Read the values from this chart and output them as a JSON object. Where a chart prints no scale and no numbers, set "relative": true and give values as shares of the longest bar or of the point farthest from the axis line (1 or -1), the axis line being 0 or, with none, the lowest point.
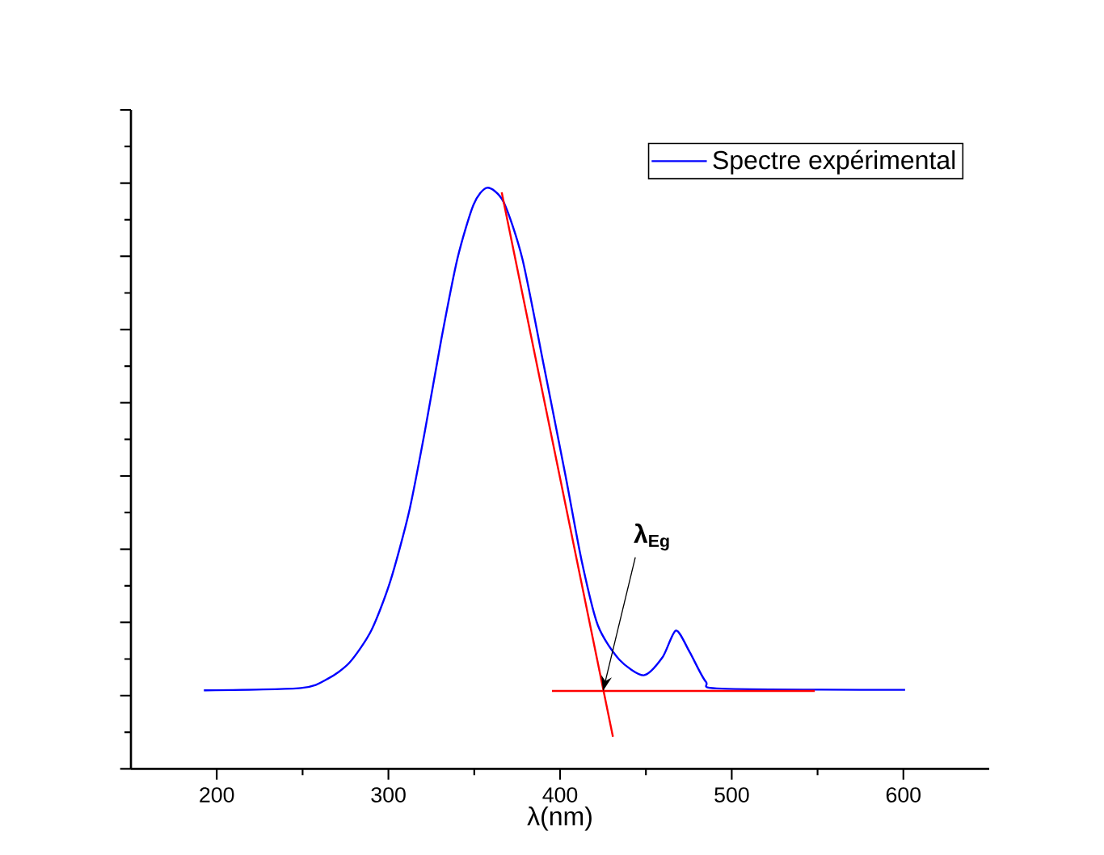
{
  "chart_data": {
    "type": "line",
    "relative": true,
    "xlabel": "λ(nm)",
    "xlim": [
      150,
      650
    ],
    "xticks": [
      200,
      300,
      400,
      500,
      600
    ],
    "tick_labels": "x",
    "legend": "top right",
    "grid": false,
    "marker": "none",
    "line_style": "solid",
    "annotations": [
      {
        "text": "λ$_{Eg}$",
        "x": 425,
        "y": 0.134
      }
    ],
    "series": [
      {
        "name": "Spectre expérimental",
        "color": "#0000ff",
        "x": [
          192.5,
          249,
          264.7,
          277.4,
          290,
          301,
          312,
          321.3,
          330.8,
          340.2,
          349.6,
          357.5,
          367,
          378,
          390.6,
          403,
          412.5,
          422,
          434.5,
          448.7,
          459.7,
          467.5,
          475.5,
          484.9,
          494.3,
          601
        ],
        "values": [
          0.135,
          0.139,
          0.155,
          0.183,
          0.238,
          0.322,
          0.442,
          0.582,
          0.739,
          0.878,
          0.971,
          1.0,
          0.976,
          0.878,
          0.693,
          0.507,
          0.359,
          0.247,
          0.188,
          0.161,
          0.192,
          0.238,
          0.201,
          0.15,
          0.138,
          0.136
        ]
      },
      {
        "type": "line",
        "color": "#ff0000",
        "x": [
          366,
          430.8
        ],
        "values": [
          0.992,
          0.055
        ]
      },
      {
        "type": "line",
        "color": "#ff0000",
        "x": [
          395.3,
          548.4
        ],
        "values": [
          0.134,
          0.134
        ]
      }
    ]
  }
}
